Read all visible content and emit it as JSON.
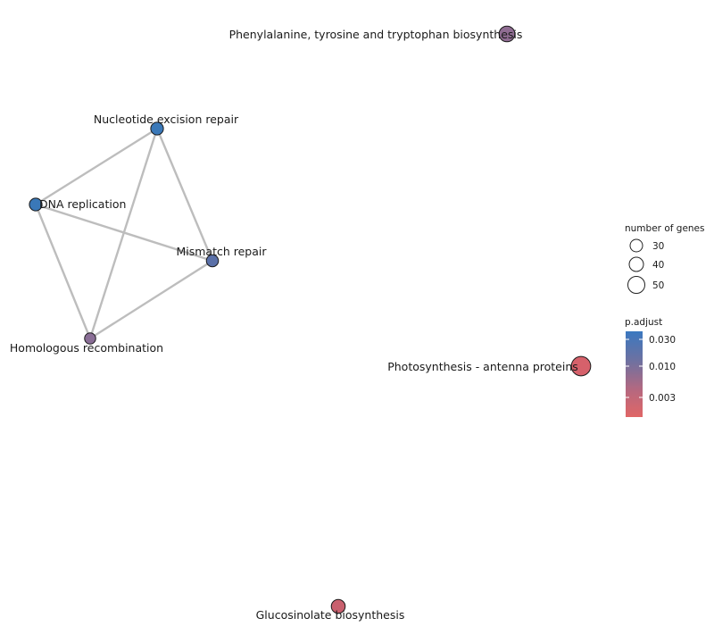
{
  "nodes": [
    {
      "id": "nucleotide",
      "label": "Nucleotide excision repair",
      "color": "#3a78b8",
      "genes": 30
    },
    {
      "id": "dna",
      "label": "DNA replication",
      "color": "#3a78b8",
      "genes": 30
    },
    {
      "id": "mismatch",
      "label": "Mismatch repair",
      "color": "#5a70a8",
      "genes": 28
    },
    {
      "id": "homologous",
      "label": "Homologous recombination",
      "color": "#8a6e96",
      "genes": 25
    },
    {
      "id": "phenyl",
      "label": "Phenylalanine, tyrosine and tryptophan biosynthesis",
      "color": "#8f6c92",
      "genes": 40
    },
    {
      "id": "photo",
      "label": "Photosynthesis - antenna proteins",
      "color": "#d6616b",
      "genes": 52
    },
    {
      "id": "glucosinolate",
      "label": "Glucosinolate biosynthesis",
      "color": "#c9606e",
      "genes": 34
    }
  ],
  "edges": [
    [
      "nucleotide",
      "dna"
    ],
    [
      "nucleotide",
      "mismatch"
    ],
    [
      "nucleotide",
      "homologous"
    ],
    [
      "dna",
      "mismatch"
    ],
    [
      "dna",
      "homologous"
    ],
    [
      "mismatch",
      "homologous"
    ]
  ],
  "legend": {
    "size_title": "number of genes",
    "size_items": [
      "30",
      "40",
      "50"
    ],
    "color_title": "p.adjust",
    "color_ticks": [
      "0.030",
      "0.010",
      "0.003"
    ],
    "color_top": "#3a78c0",
    "color_bottom": "#e06666"
  }
}
